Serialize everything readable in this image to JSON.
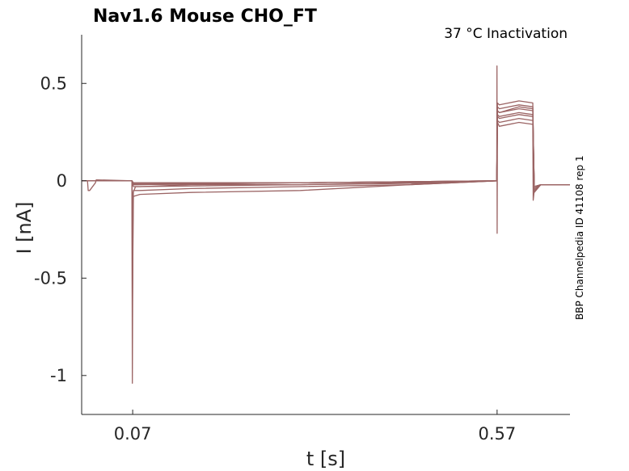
{
  "chart_data": {
    "type": "line",
    "title": "Nav1.6  Mouse  CHO_FT",
    "annotation": "37 °C  Inactivation",
    "side_note": "BBP Channelpedia ID 41108 rep 1",
    "xlabel": "t [s]",
    "ylabel": "I [nA]",
    "xlim": [
      0.0,
      0.67
    ],
    "ylim": [
      -1.2,
      0.75
    ],
    "x_ticks": [
      0.07,
      0.57
    ],
    "x_tick_labels": [
      "0.07",
      "0.57"
    ],
    "y_ticks": [
      0.5,
      0,
      -0.5,
      -1
    ],
    "y_tick_labels": [
      "0.5",
      "0",
      "-0.5",
      "-1"
    ],
    "grid": false,
    "color": "#9b6464",
    "series": [
      {
        "x": [
          0.0,
          0.008,
          0.009,
          0.011,
          0.019,
          0.02,
          0.069,
          0.0695,
          0.0705,
          0.074,
          0.08,
          0.15,
          0.3,
          0.42,
          0.5,
          0.5695,
          0.5698,
          0.57,
          0.5705,
          0.573,
          0.6,
          0.619,
          0.6195,
          0.621,
          0.63,
          0.67
        ],
        "y": [
          0.0,
          0.0,
          -0.05,
          -0.05,
          -0.01,
          0.005,
          0.0,
          -1.04,
          -0.06,
          -0.03,
          -0.03,
          -0.02,
          -0.02,
          -0.015,
          -0.01,
          0.0,
          0.59,
          -0.27,
          0.3,
          0.28,
          0.3,
          0.29,
          -0.1,
          -0.05,
          -0.02,
          -0.02
        ]
      },
      {
        "x": [
          0.0,
          0.069,
          0.0695,
          0.071,
          0.08,
          0.15,
          0.3,
          0.45,
          0.5695,
          0.5705,
          0.573,
          0.6,
          0.619,
          0.621,
          0.63,
          0.67
        ],
        "y": [
          0.0,
          0.0,
          -0.7,
          -0.08,
          -0.07,
          -0.06,
          -0.05,
          -0.02,
          0.0,
          0.33,
          0.32,
          0.34,
          0.33,
          -0.06,
          -0.02,
          -0.02
        ]
      },
      {
        "x": [
          0.0,
          0.069,
          0.0695,
          0.071,
          0.08,
          0.15,
          0.3,
          0.45,
          0.5695,
          0.5705,
          0.573,
          0.6,
          0.619,
          0.621,
          0.63,
          0.67
        ],
        "y": [
          0.0,
          0.0,
          -0.4,
          -0.05,
          -0.05,
          -0.04,
          -0.03,
          -0.02,
          0.0,
          0.36,
          0.35,
          0.37,
          0.36,
          -0.05,
          -0.02,
          -0.02
        ]
      },
      {
        "x": [
          0.0,
          0.069,
          0.071,
          0.08,
          0.3,
          0.5695,
          0.5705,
          0.573,
          0.6,
          0.619,
          0.621,
          0.63,
          0.67
        ],
        "y": [
          0.0,
          0.0,
          -0.03,
          -0.03,
          -0.02,
          0.0,
          0.38,
          0.37,
          0.39,
          0.38,
          -0.04,
          -0.02,
          -0.02
        ]
      },
      {
        "x": [
          0.0,
          0.069,
          0.071,
          0.3,
          0.5695,
          0.5705,
          0.573,
          0.6,
          0.619,
          0.621,
          0.63,
          0.67
        ],
        "y": [
          0.0,
          0.0,
          -0.02,
          -0.01,
          0.0,
          0.4,
          0.39,
          0.41,
          0.4,
          -0.04,
          -0.02,
          -0.02
        ]
      },
      {
        "x": [
          0.0,
          0.069,
          0.071,
          0.3,
          0.5695,
          0.5705,
          0.573,
          0.6,
          0.619,
          0.621,
          0.63,
          0.67
        ],
        "y": [
          0.0,
          0.0,
          -0.02,
          -0.01,
          0.0,
          0.31,
          0.3,
          0.32,
          0.31,
          -0.03,
          -0.02,
          -0.02
        ]
      },
      {
        "x": [
          0.0,
          0.069,
          0.071,
          0.3,
          0.5695,
          0.5705,
          0.573,
          0.6,
          0.619,
          0.621,
          0.63,
          0.67
        ],
        "y": [
          0.0,
          0.0,
          -0.015,
          -0.01,
          0.0,
          0.34,
          0.33,
          0.35,
          0.34,
          -0.03,
          -0.02,
          -0.02
        ]
      },
      {
        "x": [
          0.0,
          0.069,
          0.071,
          0.3,
          0.5695,
          0.5705,
          0.573,
          0.6,
          0.619,
          0.621,
          0.63,
          0.67
        ],
        "y": [
          0.0,
          0.0,
          -0.01,
          -0.01,
          0.0,
          0.36,
          0.35,
          0.38,
          0.37,
          -0.03,
          -0.02,
          -0.02
        ]
      }
    ]
  }
}
